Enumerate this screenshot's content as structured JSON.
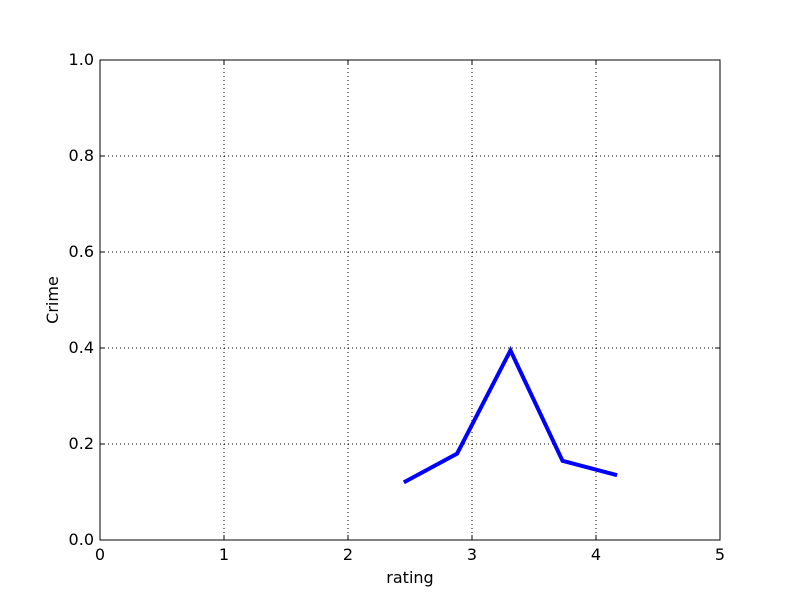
{
  "chart_data": {
    "type": "line",
    "title": "",
    "xlabel": "rating",
    "ylabel": "Crime",
    "xlim": [
      0,
      5
    ],
    "ylim": [
      0,
      1
    ],
    "x_ticks": [
      "0",
      "1",
      "2",
      "3",
      "4",
      "5"
    ],
    "y_ticks": [
      "0.0",
      "0.2",
      "0.4",
      "0.6",
      "0.8",
      "1.0"
    ],
    "grid": true,
    "series": [
      {
        "color": "#0000ff",
        "x": [
          2.45,
          2.88,
          3.31,
          3.73,
          4.17
        ],
        "y": [
          0.12,
          0.18,
          0.395,
          0.165,
          0.135
        ]
      }
    ]
  }
}
